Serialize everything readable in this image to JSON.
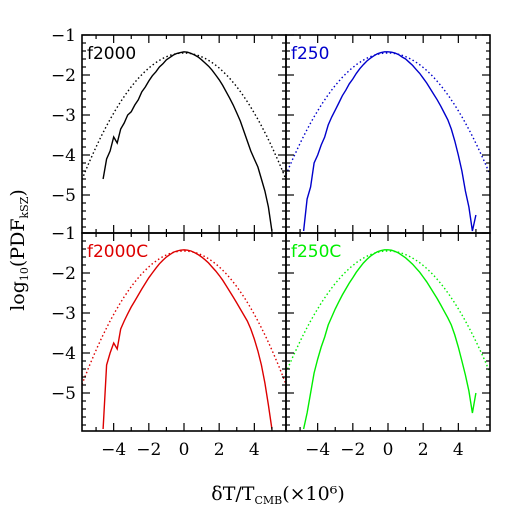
{
  "chart_data": {
    "type": "line",
    "layout": "2x2 panels, shared axes",
    "xlabel": {
      "prefix": "δT/T",
      "subscript": "CMB",
      "suffix": "(×10⁶)"
    },
    "ylabel": {
      "prefix": "log",
      "subscript1": "10",
      "middle": "(PDF",
      "subscript2": "kSZ",
      "suffix": ")"
    },
    "xlim": [
      -5.8,
      5.8
    ],
    "ylim": [
      -5.95,
      -1
    ],
    "x_ticks": [
      -4,
      -2,
      0,
      2,
      4
    ],
    "x_tick_labels": [
      "−4",
      "−2",
      "0",
      "2",
      "4"
    ],
    "y_ticks": [
      -1,
      -2,
      -3,
      -4,
      -5
    ],
    "y_tick_labels": [
      "−1",
      "−2",
      "−3",
      "−4",
      "−5"
    ],
    "panels": [
      {
        "label": "f2000",
        "color": "#000000",
        "gaussian": {
          "mean": 0.0,
          "peak": -1.45,
          "width": 1.52
        },
        "measured": {
          "x": [
            -4.6,
            -4.4,
            -4.2,
            -4.0,
            -3.8,
            -3.6,
            -3.4,
            -3.2,
            -3.0,
            -2.8,
            -2.6,
            -2.4,
            -2.2,
            -2.0,
            -1.8,
            -1.6,
            -1.4,
            -1.2,
            -1.0,
            -0.8,
            -0.6,
            -0.4,
            -0.2,
            0.0,
            0.2,
            0.4,
            0.6,
            0.8,
            1.0,
            1.2,
            1.4,
            1.6,
            1.8,
            2.0,
            2.2,
            2.4,
            2.6,
            2.8,
            3.0,
            3.2,
            3.4,
            3.6,
            3.8,
            4.0,
            4.2,
            4.4,
            4.6,
            4.8,
            5.0
          ],
          "y": [
            -4.6,
            -4.1,
            -3.9,
            -3.55,
            -3.7,
            -3.35,
            -3.2,
            -3.0,
            -2.92,
            -2.75,
            -2.62,
            -2.42,
            -2.3,
            -2.15,
            -2.02,
            -1.92,
            -1.8,
            -1.72,
            -1.62,
            -1.56,
            -1.5,
            -1.46,
            -1.44,
            -1.42,
            -1.43,
            -1.46,
            -1.5,
            -1.55,
            -1.62,
            -1.7,
            -1.78,
            -1.88,
            -2.0,
            -2.12,
            -2.26,
            -2.42,
            -2.58,
            -2.75,
            -2.95,
            -3.15,
            -3.4,
            -3.65,
            -3.9,
            -4.1,
            -4.3,
            -4.6,
            -4.9,
            -5.3,
            -5.9
          ]
        }
      },
      {
        "label": "f250",
        "color": "#0000cc",
        "gaussian": {
          "mean": 0.0,
          "peak": -1.45,
          "width": 1.55
        },
        "measured": {
          "x": [
            -4.8,
            -4.6,
            -4.4,
            -4.2,
            -4.0,
            -3.8,
            -3.6,
            -3.4,
            -3.2,
            -3.0,
            -2.8,
            -2.6,
            -2.4,
            -2.2,
            -2.0,
            -1.8,
            -1.6,
            -1.4,
            -1.2,
            -1.0,
            -0.8,
            -0.6,
            -0.4,
            -0.2,
            0.0,
            0.2,
            0.4,
            0.6,
            0.8,
            1.0,
            1.2,
            1.4,
            1.6,
            1.8,
            2.0,
            2.2,
            2.4,
            2.6,
            2.8,
            3.0,
            3.2,
            3.4,
            3.6,
            3.8,
            4.0,
            4.2,
            4.4,
            4.6,
            4.8,
            5.0
          ],
          "y": [
            -5.9,
            -5.1,
            -4.8,
            -4.2,
            -4.0,
            -3.75,
            -3.55,
            -3.25,
            -3.05,
            -2.88,
            -2.7,
            -2.52,
            -2.38,
            -2.22,
            -2.1,
            -1.96,
            -1.84,
            -1.74,
            -1.65,
            -1.58,
            -1.52,
            -1.47,
            -1.44,
            -1.42,
            -1.42,
            -1.43,
            -1.45,
            -1.49,
            -1.55,
            -1.6,
            -1.68,
            -1.76,
            -1.86,
            -1.96,
            -2.08,
            -2.2,
            -2.34,
            -2.48,
            -2.62,
            -2.78,
            -2.95,
            -3.12,
            -3.35,
            -3.65,
            -4.0,
            -4.4,
            -4.9,
            -5.3,
            -5.9,
            -5.5
          ]
        }
      },
      {
        "label": "f2000C",
        "color": "#dd0000",
        "gaussian": {
          "mean": 0.0,
          "peak": -1.45,
          "width": 1.48
        },
        "measured": {
          "x": [
            -4.6,
            -4.4,
            -4.2,
            -4.0,
            -3.8,
            -3.6,
            -3.4,
            -3.2,
            -3.0,
            -2.8,
            -2.6,
            -2.4,
            -2.2,
            -2.0,
            -1.8,
            -1.6,
            -1.4,
            -1.2,
            -1.0,
            -0.8,
            -0.6,
            -0.4,
            -0.2,
            0.0,
            0.2,
            0.4,
            0.6,
            0.8,
            1.0,
            1.2,
            1.4,
            1.6,
            1.8,
            2.0,
            2.2,
            2.4,
            2.6,
            2.8,
            3.0,
            3.2,
            3.4,
            3.6,
            3.8,
            4.0,
            4.2,
            4.4,
            4.6,
            4.8,
            5.0
          ],
          "y": [
            -5.9,
            -4.3,
            -4.0,
            -3.75,
            -3.9,
            -3.4,
            -3.2,
            -3.02,
            -2.85,
            -2.7,
            -2.55,
            -2.4,
            -2.26,
            -2.12,
            -2.0,
            -1.88,
            -1.77,
            -1.68,
            -1.6,
            -1.54,
            -1.48,
            -1.45,
            -1.43,
            -1.42,
            -1.43,
            -1.45,
            -1.49,
            -1.54,
            -1.6,
            -1.67,
            -1.75,
            -1.85,
            -1.95,
            -2.06,
            -2.18,
            -2.32,
            -2.46,
            -2.6,
            -2.75,
            -2.9,
            -3.05,
            -3.2,
            -3.4,
            -3.65,
            -3.95,
            -4.3,
            -4.75,
            -5.3,
            -5.9
          ]
        }
      },
      {
        "label": "f250C",
        "color": "#00ee00",
        "gaussian": {
          "mean": 0.0,
          "peak": -1.45,
          "width": 1.55
        },
        "measured": {
          "x": [
            -4.8,
            -4.6,
            -4.4,
            -4.2,
            -4.0,
            -3.8,
            -3.6,
            -3.4,
            -3.2,
            -3.0,
            -2.8,
            -2.6,
            -2.4,
            -2.2,
            -2.0,
            -1.8,
            -1.6,
            -1.4,
            -1.2,
            -1.0,
            -0.8,
            -0.6,
            -0.4,
            -0.2,
            0.0,
            0.2,
            0.4,
            0.6,
            0.8,
            1.0,
            1.2,
            1.4,
            1.6,
            1.8,
            2.0,
            2.2,
            2.4,
            2.6,
            2.8,
            3.0,
            3.2,
            3.4,
            3.6,
            3.8,
            4.0,
            4.2,
            4.4,
            4.6,
            4.8,
            5.0
          ],
          "y": [
            -5.9,
            -5.5,
            -5.0,
            -4.5,
            -4.15,
            -3.85,
            -3.6,
            -3.3,
            -3.1,
            -2.9,
            -2.72,
            -2.55,
            -2.4,
            -2.25,
            -2.12,
            -1.98,
            -1.86,
            -1.75,
            -1.66,
            -1.58,
            -1.52,
            -1.47,
            -1.44,
            -1.42,
            -1.42,
            -1.43,
            -1.46,
            -1.5,
            -1.56,
            -1.62,
            -1.7,
            -1.78,
            -1.88,
            -1.98,
            -2.1,
            -2.22,
            -2.36,
            -2.5,
            -2.64,
            -2.8,
            -2.96,
            -3.12,
            -3.3,
            -3.55,
            -3.85,
            -4.2,
            -4.55,
            -4.95,
            -5.5,
            -5.0
          ]
        }
      }
    ]
  }
}
